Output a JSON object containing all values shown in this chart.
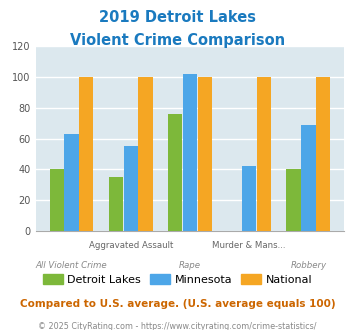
{
  "title_line1": "2019 Detroit Lakes",
  "title_line2": "Violent Crime Comparison",
  "title_color": "#1a7abf",
  "categories": [
    "All Violent Crime",
    "Aggravated Assault",
    "Rape",
    "Murder & Mans...",
    "Robbery"
  ],
  "label_top": [
    "",
    "Aggravated Assault",
    "",
    "Murder & Mans...",
    ""
  ],
  "label_bottom": [
    "All Violent Crime",
    "",
    "Rape",
    "",
    "Robbery"
  ],
  "detroit_lakes": [
    40,
    35,
    76,
    0,
    40
  ],
  "minnesota": [
    63,
    55,
    102,
    42,
    69
  ],
  "national": [
    100,
    100,
    100,
    100,
    100
  ],
  "bar_green": "#7db83a",
  "bar_blue": "#4da6e8",
  "bar_orange": "#f5a623",
  "ylim": [
    0,
    120
  ],
  "yticks": [
    0,
    20,
    40,
    60,
    80,
    100,
    120
  ],
  "legend_labels": [
    "Detroit Lakes",
    "Minnesota",
    "National"
  ],
  "footnote1": "Compared to U.S. average. (U.S. average equals 100)",
  "footnote2": "© 2025 CityRating.com - https://www.cityrating.com/crime-statistics/",
  "footnote1_color": "#cc6600",
  "footnote2_color": "#888888",
  "bg_color": "#dce8ee",
  "grid_color": "#ffffff"
}
